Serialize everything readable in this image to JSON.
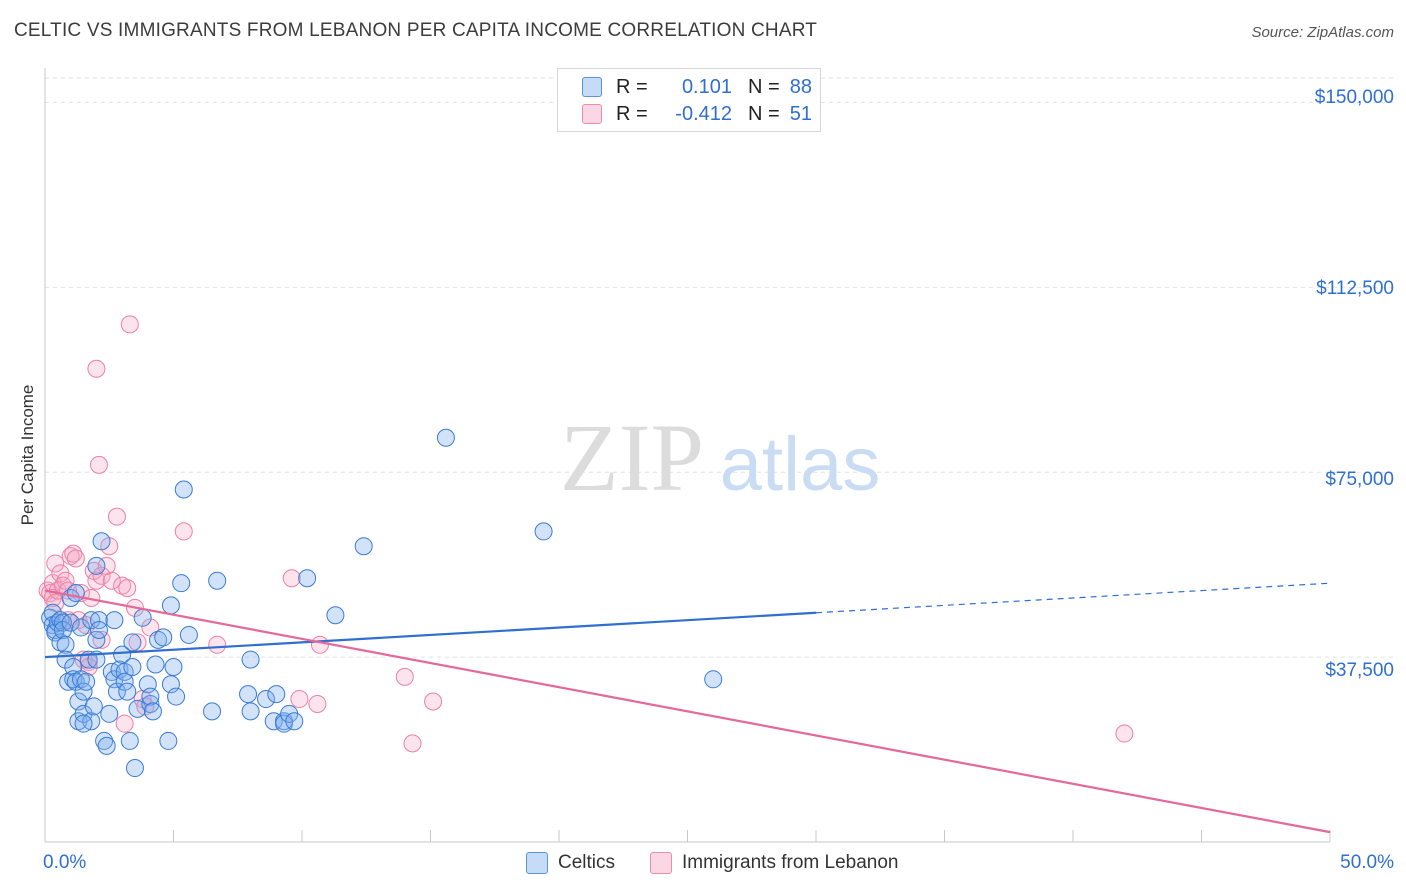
{
  "header": {
    "title": "CELTIC VS IMMIGRANTS FROM LEBANON PER CAPITA INCOME CORRELATION CHART",
    "source": "Source: ZipAtlas.com"
  },
  "watermark": {
    "zip": "ZIP",
    "atlas": "atlas"
  },
  "legend": {
    "rows": [
      {
        "r_label": "R =",
        "r_value": "0.101",
        "n_label": "N =",
        "n_value": "88",
        "color": "#7fb0ef"
      },
      {
        "r_label": "R =",
        "r_value": "-0.412",
        "n_label": "N =",
        "n_value": "51",
        "color": "#f4a6c0"
      }
    ]
  },
  "bottom_legend": {
    "celtics": "Celtics",
    "lebanon": "Immigrants from Lebanon"
  },
  "colors": {
    "celtic_fill": "rgba(127,176,239,0.35)",
    "celtic_stroke": "#3a7bd5",
    "celtic_line": "#2f6fd0",
    "lebanon_fill": "rgba(244,166,192,0.30)",
    "lebanon_stroke": "#ee7fa6",
    "lebanon_line": "#e5689a",
    "grid": "#e2e2e2",
    "tick_text": "#2f6fd0"
  },
  "chart_data": {
    "type": "scatter",
    "title": "CELTIC VS IMMIGRANTS FROM LEBANON PER CAPITA INCOME CORRELATION CHART",
    "xlabel": "",
    "ylabel": "Per Capita Income",
    "xlim": [
      0,
      50
    ],
    "ylim": [
      0,
      157000
    ],
    "x_tick_labels": [
      "0.0%",
      "50.0%"
    ],
    "y_ticks": [
      37500,
      75000,
      112500,
      150000
    ],
    "y_tick_labels": [
      "$37,500",
      "$75,000",
      "$112,500",
      "$150,000"
    ],
    "series": [
      {
        "name": "Celtics",
        "R": 0.101,
        "N": 88,
        "trend": {
          "x0": 0,
          "y0": 37500,
          "x1": 30,
          "y1": 46500,
          "dashed_to_x": 50,
          "dashed_to_y": 52500
        },
        "points": [
          [
            0.2,
            45500
          ],
          [
            0.3,
            46500
          ],
          [
            0.3,
            44000
          ],
          [
            0.4,
            43000
          ],
          [
            0.4,
            42500
          ],
          [
            0.5,
            44500
          ],
          [
            0.6,
            45000
          ],
          [
            0.6,
            40500
          ],
          [
            0.7,
            44500
          ],
          [
            0.7,
            43000
          ],
          [
            0.8,
            40000
          ],
          [
            0.8,
            37000
          ],
          [
            0.9,
            32500
          ],
          [
            1.0,
            49500
          ],
          [
            1.0,
            44500
          ],
          [
            1.1,
            35500
          ],
          [
            1.1,
            33000
          ],
          [
            1.2,
            50500
          ],
          [
            1.2,
            32500
          ],
          [
            1.3,
            28500
          ],
          [
            1.3,
            24500
          ],
          [
            1.4,
            43500
          ],
          [
            1.4,
            33000
          ],
          [
            1.5,
            30500
          ],
          [
            1.5,
            26000
          ],
          [
            1.6,
            32500
          ],
          [
            1.7,
            37000
          ],
          [
            1.8,
            24500
          ],
          [
            1.8,
            45000
          ],
          [
            1.9,
            27500
          ],
          [
            2.0,
            56000
          ],
          [
            2.0,
            41000
          ],
          [
            2.1,
            45000
          ],
          [
            2.1,
            43000
          ],
          [
            2.2,
            61000
          ],
          [
            2.3,
            20500
          ],
          [
            2.4,
            19500
          ],
          [
            2.5,
            26000
          ],
          [
            2.6,
            34500
          ],
          [
            2.7,
            45000
          ],
          [
            2.7,
            33000
          ],
          [
            2.8,
            30500
          ],
          [
            2.9,
            35000
          ],
          [
            3.0,
            38000
          ],
          [
            3.1,
            34500
          ],
          [
            3.1,
            32500
          ],
          [
            3.2,
            30500
          ],
          [
            3.3,
            20500
          ],
          [
            3.4,
            35500
          ],
          [
            3.4,
            40500
          ],
          [
            3.5,
            15000
          ],
          [
            3.6,
            27000
          ],
          [
            3.8,
            45500
          ],
          [
            4.0,
            32000
          ],
          [
            4.1,
            28000
          ],
          [
            4.1,
            29500
          ],
          [
            4.2,
            26500
          ],
          [
            4.3,
            36000
          ],
          [
            4.4,
            41000
          ],
          [
            4.6,
            41500
          ],
          [
            4.8,
            20500
          ],
          [
            4.9,
            48000
          ],
          [
            4.9,
            32000
          ],
          [
            5.0,
            35500
          ],
          [
            5.1,
            29500
          ],
          [
            5.3,
            52500
          ],
          [
            5.4,
            71500
          ],
          [
            5.6,
            42000
          ],
          [
            6.5,
            26500
          ],
          [
            6.7,
            53000
          ],
          [
            7.9,
            30000
          ],
          [
            8.0,
            37000
          ],
          [
            8.0,
            26500
          ],
          [
            8.6,
            29000
          ],
          [
            8.9,
            24500
          ],
          [
            9.0,
            30000
          ],
          [
            9.3,
            24500
          ],
          [
            9.3,
            24000
          ],
          [
            9.5,
            26000
          ],
          [
            9.7,
            24500
          ],
          [
            10.2,
            53500
          ],
          [
            11.3,
            46000
          ],
          [
            12.4,
            60000
          ],
          [
            15.6,
            82000
          ],
          [
            19.4,
            63000
          ],
          [
            26.0,
            33000
          ],
          [
            1.5,
            24000
          ],
          [
            2.0,
            37000
          ]
        ]
      },
      {
        "name": "Immigrants from Lebanon",
        "R": -0.412,
        "N": 51,
        "trend": {
          "x0": 0,
          "y0": 51000,
          "x1": 50,
          "y1": 2000
        },
        "points": [
          [
            0.1,
            51000
          ],
          [
            0.2,
            50500
          ],
          [
            0.3,
            52500
          ],
          [
            0.3,
            49500
          ],
          [
            0.4,
            56500
          ],
          [
            0.4,
            48500
          ],
          [
            0.5,
            51000
          ],
          [
            0.6,
            54500
          ],
          [
            0.7,
            52000
          ],
          [
            0.8,
            53000
          ],
          [
            0.9,
            51000
          ],
          [
            0.9,
            45000
          ],
          [
            1.0,
            58000
          ],
          [
            1.1,
            58500
          ],
          [
            1.2,
            57500
          ],
          [
            1.3,
            45000
          ],
          [
            1.4,
            50500
          ],
          [
            1.5,
            37000
          ],
          [
            1.6,
            44000
          ],
          [
            1.7,
            36500
          ],
          [
            1.8,
            49500
          ],
          [
            1.9,
            55000
          ],
          [
            2.0,
            53000
          ],
          [
            2.0,
            96000
          ],
          [
            2.1,
            76500
          ],
          [
            2.2,
            54000
          ],
          [
            2.2,
            41000
          ],
          [
            2.4,
            56000
          ],
          [
            2.5,
            60000
          ],
          [
            2.6,
            53000
          ],
          [
            2.8,
            66000
          ],
          [
            3.0,
            52000
          ],
          [
            3.1,
            24000
          ],
          [
            3.2,
            51500
          ],
          [
            3.3,
            105000
          ],
          [
            3.5,
            47500
          ],
          [
            3.6,
            40500
          ],
          [
            3.8,
            29000
          ],
          [
            3.9,
            27500
          ],
          [
            4.1,
            43500
          ],
          [
            5.4,
            63000
          ],
          [
            6.7,
            40000
          ],
          [
            9.6,
            53500
          ],
          [
            9.9,
            29000
          ],
          [
            10.6,
            28000
          ],
          [
            10.7,
            40000
          ],
          [
            14.0,
            33500
          ],
          [
            14.3,
            20000
          ],
          [
            15.1,
            28500
          ],
          [
            42.0,
            22000
          ],
          [
            1.7,
            35500
          ]
        ]
      }
    ]
  }
}
